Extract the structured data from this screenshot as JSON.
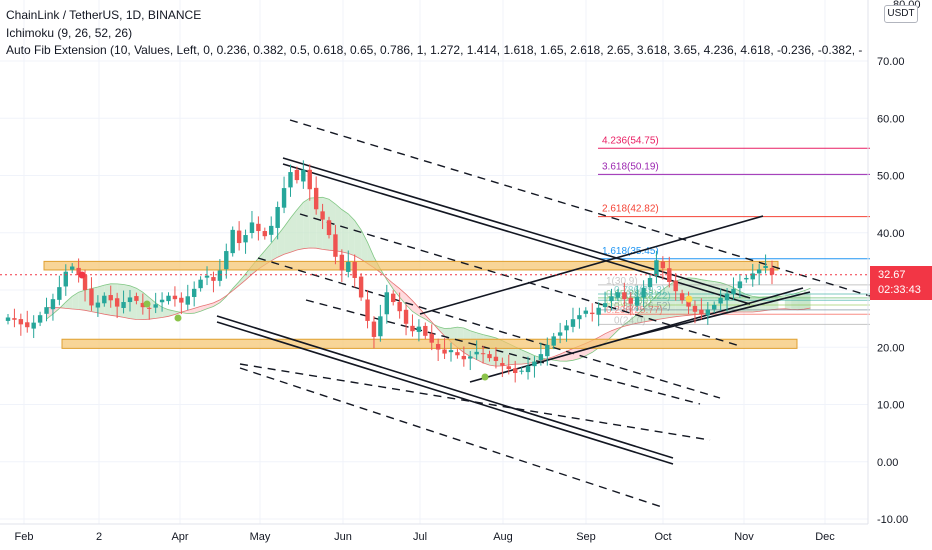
{
  "header": {
    "symbol_line": "ChainLink / TetherUS, 1D, BINANCE",
    "ichimoku_line": "Ichimoku (9, 26, 52, 26)",
    "fib_line": "Auto Fib Extension (10, Values, Left, 0, 0.236, 0.382, 0.5, 0.618, 0.65, 0.786, 1, 1.272, 1.414, 1.618, 1.65, 2.618, 2.65, 3.618, 3.65, 4.236, 4.618, -0.236, -0.382, -"
  },
  "currency": "USDT",
  "current_price": {
    "value": "32.67",
    "countdown": "02:33:43",
    "color": "#f23645"
  },
  "colors": {
    "up": "#26a69a",
    "down": "#ef5350",
    "zone": "#f5c36b",
    "cloud_green": "#c8e6c9",
    "cloud_red": "#ffcdd2"
  },
  "chart_data": {
    "type": "candlestick",
    "xlabel": "",
    "ylabel": "",
    "ylim": [
      -10,
      80
    ],
    "y_ticks": [
      "70.00",
      "60.00",
      "50.00",
      "40.00",
      "30.00",
      "20.00",
      "10.00",
      "0.00",
      "-10.00"
    ],
    "x_ticks": [
      "Feb",
      "2",
      "Apr",
      "May",
      "Jun",
      "Jul",
      "Aug",
      "Sep",
      "Oct",
      "Nov",
      "Dec"
    ],
    "top_tick_partial": "80.00",
    "zones": [
      {
        "from": 33.5,
        "to": 35.0
      },
      {
        "from": 19.8,
        "to": 21.4
      }
    ],
    "fib_levels": [
      {
        "label": "4.236(54.75)",
        "value": 54.75,
        "color": "#e91e63"
      },
      {
        "label": "3.618(50.19)",
        "value": 50.19,
        "color": "#9c27b0"
      },
      {
        "label": "2.618(42.82)",
        "value": 42.82,
        "color": "#f44336"
      },
      {
        "label": "1.618(35.45)",
        "value": 35.45,
        "color": "#2196f3"
      }
    ],
    "fib_faded_labels": [
      "1(30.9)",
      "0.786(29.3)",
      "0.65(28.62)",
      "0.618(28.22)",
      "0.5(27.39)",
      "0.382(26.52)",
      "0.236(25.77)",
      "0(24.0)"
    ],
    "close_series": [
      25.2,
      24.8,
      24.0,
      23.5,
      24.3,
      25.6,
      27.0,
      28.4,
      30.5,
      33.2,
      34.1,
      32.6,
      30.0,
      27.3,
      27.8,
      29.0,
      28.2,
      27.1,
      27.9,
      28.7,
      28.1,
      27.0,
      26.8,
      27.5,
      28.3,
      29.0,
      28.4,
      27.8,
      28.9,
      30.2,
      31.8,
      32.5,
      31.6,
      33.4,
      36.8,
      40.5,
      38.2,
      39.6,
      41.8,
      40.3,
      39.4,
      41.2,
      44.5,
      47.8,
      50.6,
      49.2,
      51.0,
      47.6,
      44.1,
      42.3,
      39.6,
      35.8,
      33.4,
      34.9,
      32.1,
      28.7,
      24.6,
      21.8,
      25.4,
      29.6,
      27.9,
      26.3,
      24.1,
      22.8,
      23.6,
      22.0,
      20.8,
      19.6,
      18.9,
      19.5,
      18.6,
      17.9,
      18.4,
      19.2,
      18.8,
      18.1,
      17.6,
      16.8,
      16.2,
      15.5,
      15.9,
      16.7,
      17.5,
      18.8,
      20.4,
      21.9,
      22.6,
      23.8,
      24.9,
      25.6,
      26.4,
      25.8,
      26.9,
      27.7,
      28.9,
      29.6,
      28.4,
      27.6,
      28.8,
      30.4,
      32.1,
      35.2,
      33.8,
      31.4,
      29.8,
      28.2,
      27.1,
      26.2,
      25.8,
      26.6,
      27.4,
      28.6,
      29.4,
      30.2,
      31.5,
      32.1,
      32.9,
      33.6,
      34.2,
      32.67
    ]
  }
}
